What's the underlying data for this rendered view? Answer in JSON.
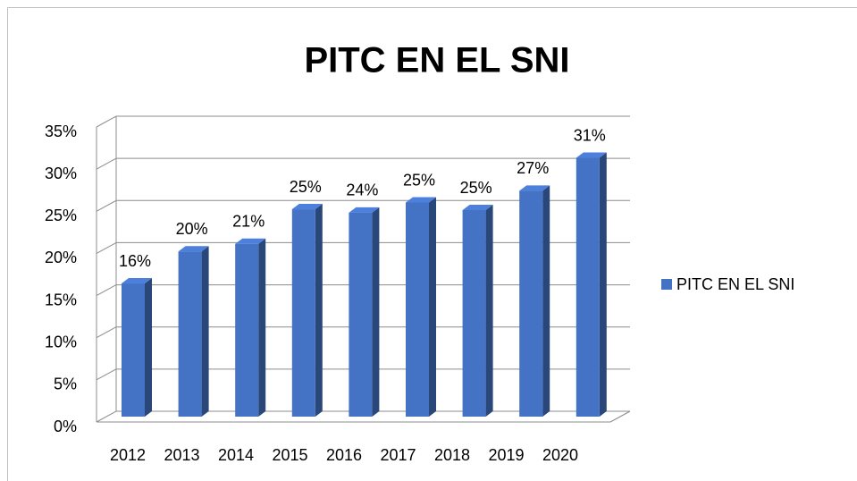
{
  "chart_data": {
    "type": "bar3d",
    "title": "PITC EN EL SNI",
    "categories": [
      "2012",
      "2013",
      "2014",
      "2015",
      "2016",
      "2017",
      "2018",
      "2019",
      "2020"
    ],
    "series": [
      {
        "name": "PITC EN EL SNI",
        "color": "#4472c4",
        "values": [
          15.8,
          19.6,
          20.5,
          24.6,
          24.2,
          25.4,
          24.5,
          26.8,
          30.7
        ],
        "value_labels": [
          "16%",
          "20%",
          "21%",
          "25%",
          "24%",
          "25%",
          "25%",
          "27%",
          "31%"
        ]
      }
    ],
    "ylim": [
      0,
      35
    ],
    "yticks": [
      {
        "value": 0,
        "label": "0%"
      },
      {
        "value": 5,
        "label": "5%"
      },
      {
        "value": 10,
        "label": "10%"
      },
      {
        "value": 15,
        "label": "15%"
      },
      {
        "value": 20,
        "label": "20%"
      },
      {
        "value": 25,
        "label": "25%"
      },
      {
        "value": 30,
        "label": "30%"
      },
      {
        "value": 35,
        "label": "35%"
      }
    ],
    "grid": true,
    "legend": "right"
  }
}
